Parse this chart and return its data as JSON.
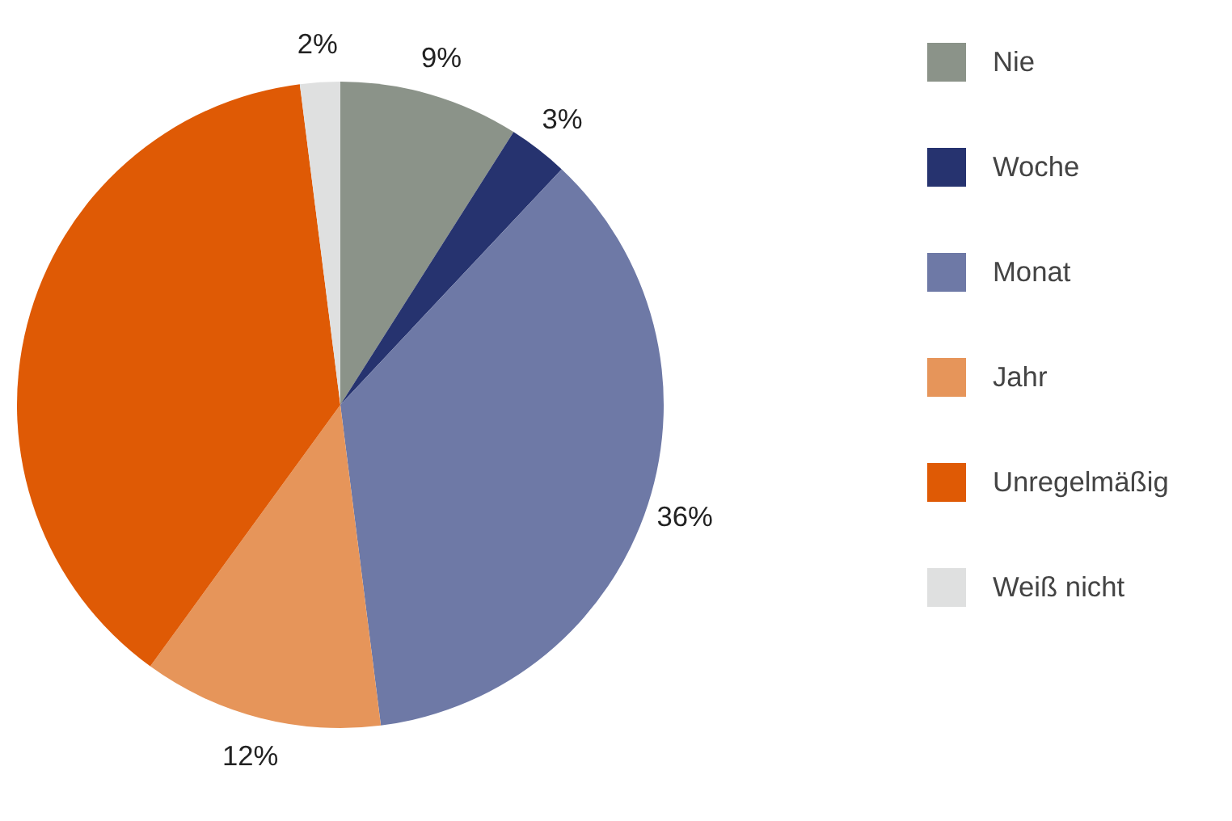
{
  "chart_data": {
    "type": "pie",
    "categories": [
      "Nie",
      "Woche",
      "Monat",
      "Jahr",
      "Unregelmäßig",
      "Weiß nicht"
    ],
    "values": [
      9,
      3,
      36,
      12,
      38,
      2
    ],
    "colors": [
      "#8b9389",
      "#26336f",
      "#6e79a6",
      "#e6955a",
      "#df5a05",
      "#dfe0e0"
    ],
    "value_labels": [
      "9%",
      "3%",
      "36%",
      "12%",
      null,
      "2%"
    ],
    "legend": "right"
  }
}
